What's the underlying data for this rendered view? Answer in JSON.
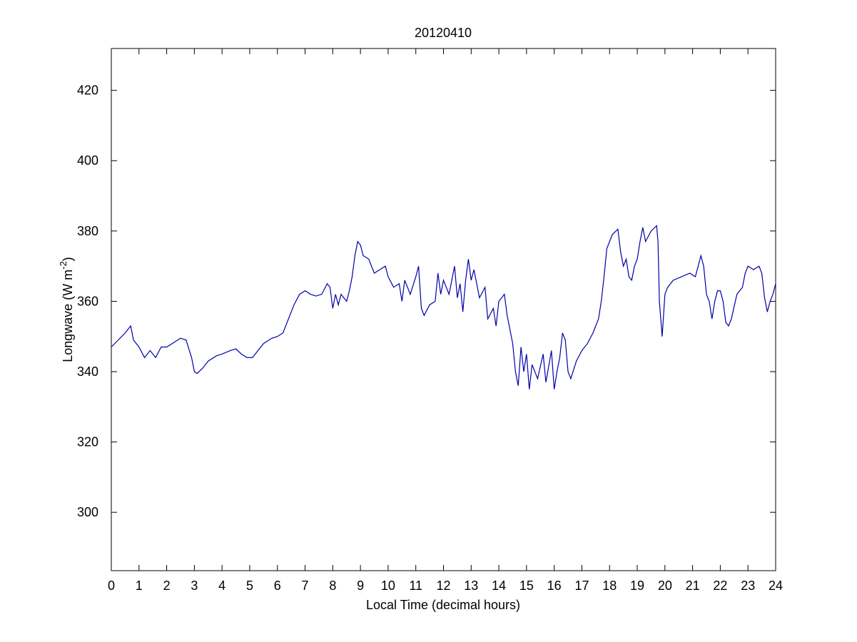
{
  "chart_data": {
    "type": "line",
    "title": "20120410",
    "x_label": "Local Time (decimal hours)",
    "y_label": {
      "text": "Longwave (W m",
      "sup": "-2",
      "end": ")"
    },
    "color": "#0000a8",
    "x": [
      0,
      0.25,
      0.5,
      0.7,
      0.8,
      1.0,
      1.2,
      1.4,
      1.6,
      1.8,
      2.0,
      2.2,
      2.5,
      2.7,
      2.9,
      3.0,
      3.1,
      3.3,
      3.5,
      3.8,
      4.0,
      4.3,
      4.5,
      4.7,
      4.9,
      5.1,
      5.3,
      5.5,
      5.8,
      6.0,
      6.2,
      6.4,
      6.6,
      6.8,
      7.0,
      7.2,
      7.4,
      7.6,
      7.8,
      7.9,
      8.0,
      8.1,
      8.2,
      8.3,
      8.5,
      8.6,
      8.7,
      8.8,
      8.9,
      9.0,
      9.1,
      9.3,
      9.5,
      9.7,
      9.9,
      10.0,
      10.2,
      10.4,
      10.5,
      10.6,
      10.8,
      11.0,
      11.1,
      11.2,
      11.3,
      11.5,
      11.7,
      11.8,
      11.9,
      12.0,
      12.2,
      12.4,
      12.5,
      12.6,
      12.7,
      12.8,
      12.9,
      13.0,
      13.1,
      13.3,
      13.5,
      13.6,
      13.8,
      13.9,
      14.0,
      14.2,
      14.3,
      14.4,
      14.5,
      14.6,
      14.7,
      14.8,
      14.9,
      15.0,
      15.1,
      15.2,
      15.4,
      15.6,
      15.7,
      15.9,
      16.0,
      16.1,
      16.2,
      16.3,
      16.4,
      16.5,
      16.6,
      16.8,
      17.0,
      17.2,
      17.4,
      17.6,
      17.7,
      17.8,
      17.9,
      18.0,
      18.1,
      18.3,
      18.4,
      18.5,
      18.6,
      18.7,
      18.8,
      18.9,
      19.0,
      19.1,
      19.2,
      19.3,
      19.5,
      19.7,
      19.75,
      19.8,
      19.9,
      20.0,
      20.1,
      20.3,
      20.6,
      20.9,
      21.1,
      21.3,
      21.4,
      21.5,
      21.6,
      21.7,
      21.8,
      21.9,
      22.0,
      22.1,
      22.2,
      22.3,
      22.4,
      22.6,
      22.8,
      22.9,
      23.0,
      23.2,
      23.4,
      23.5,
      23.6,
      23.7,
      23.8,
      23.9,
      24.0
    ],
    "values": [
      347,
      349,
      351,
      353,
      349,
      347,
      344,
      346,
      344,
      347,
      347,
      348,
      349.5,
      349,
      344,
      340,
      339.5,
      341,
      343,
      344.5,
      345,
      346,
      346.5,
      345,
      344,
      344,
      346,
      348,
      349.5,
      350,
      351,
      355,
      359,
      362,
      363,
      362,
      361.5,
      362,
      365,
      364,
      358,
      362,
      359,
      362,
      360,
      363,
      367,
      373,
      377,
      376,
      373,
      372,
      368,
      369,
      370,
      367,
      364,
      365,
      360,
      366,
      362,
      367,
      370,
      358,
      356,
      359,
      360,
      368,
      362,
      366,
      362,
      370,
      361,
      365,
      357,
      366,
      372,
      366,
      369,
      361,
      364,
      355,
      358,
      353,
      360,
      362,
      356,
      352,
      348,
      340,
      336,
      347,
      340,
      345,
      335,
      342,
      338,
      345,
      337,
      346,
      335,
      340,
      344,
      351,
      349,
      340,
      338,
      343,
      346,
      348,
      351,
      355,
      360,
      367,
      375,
      377,
      379,
      380.5,
      374,
      370,
      372,
      367,
      366,
      370,
      372,
      377,
      381,
      377,
      380,
      381.5,
      377,
      360,
      350,
      362,
      364,
      366,
      367,
      368,
      367,
      373,
      370,
      362,
      360,
      355,
      360,
      363,
      363,
      360,
      354,
      353,
      355,
      362,
      364,
      368,
      370,
      369,
      370,
      368,
      361,
      357,
      360,
      362,
      365
    ],
    "xlim": [
      0,
      24
    ],
    "xticks": [
      0,
      1,
      2,
      3,
      4,
      5,
      6,
      7,
      8,
      9,
      10,
      11,
      12,
      13,
      14,
      15,
      16,
      17,
      18,
      19,
      20,
      21,
      22,
      23,
      24
    ],
    "ylim": [
      283.4,
      431.9
    ],
    "yticks": [
      300,
      320,
      340,
      360,
      380,
      400,
      420
    ]
  }
}
